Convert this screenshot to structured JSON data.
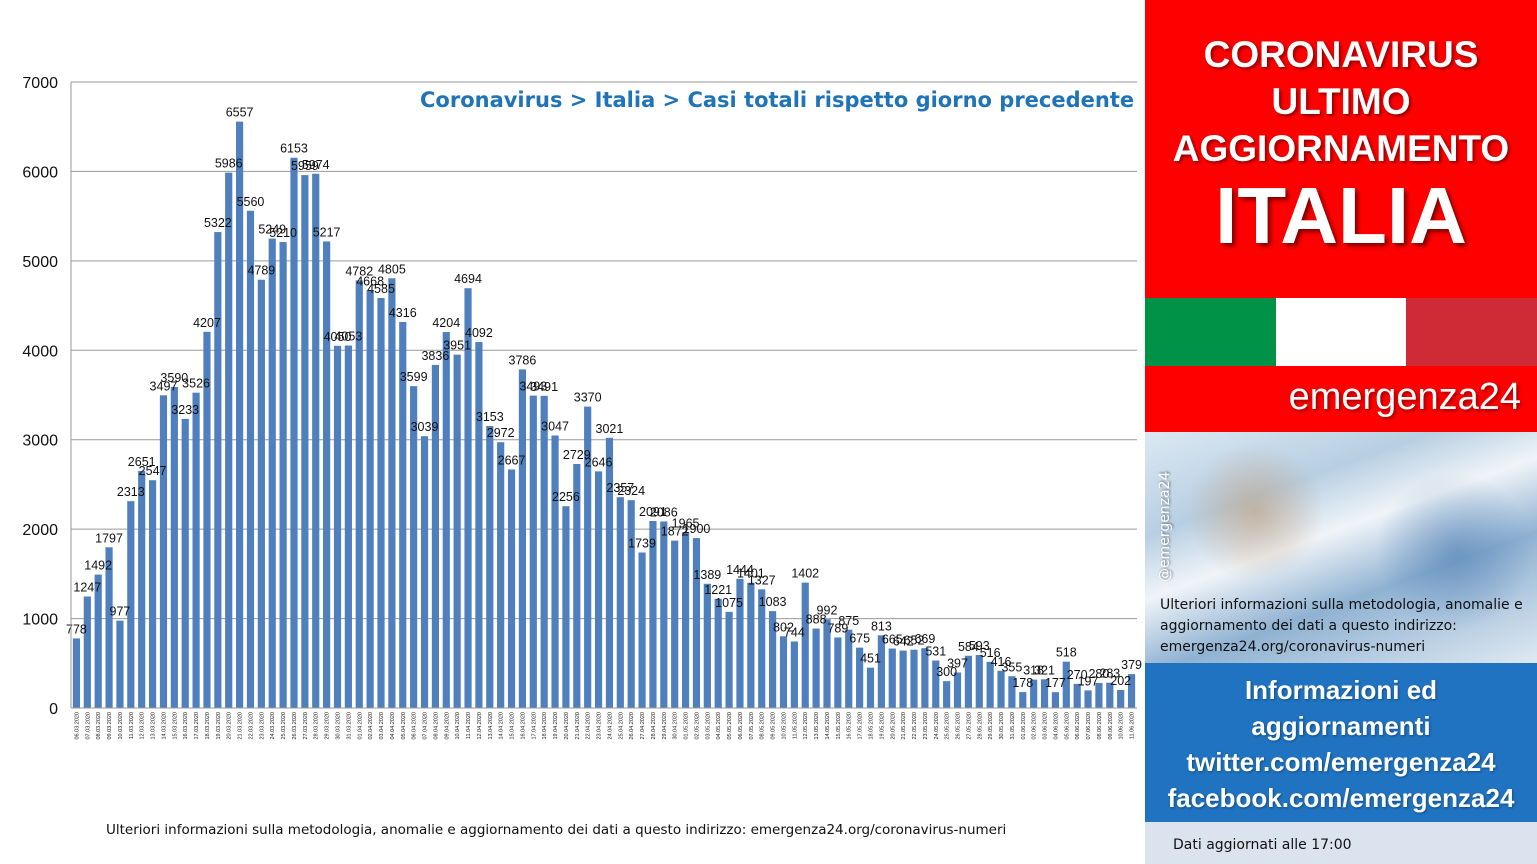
{
  "chart_data": {
    "type": "bar",
    "title": "Coronavirus > Italia > Casi totali rispetto giorno precedente",
    "ylim": [
      0,
      7000
    ],
    "yticks": [
      0,
      1000,
      2000,
      3000,
      4000,
      5000,
      6000,
      7000
    ],
    "grid": true,
    "color": "#4f7fbd",
    "categories": [
      "06.03.2020",
      "07.03.2020",
      "08.03.2020",
      "09.03.2020",
      "10.03.2020",
      "11.03.2020",
      "12.03.2020",
      "13.03.2020",
      "14.03.2020",
      "15.03.2020",
      "16.03.2020",
      "17.03.2020",
      "18.03.2020",
      "19.03.2020",
      "20.03.2020",
      "21.03.2020",
      "22.03.2020",
      "23.03.2020",
      "24.03.2020",
      "25.03.2020",
      "26.03.2020",
      "27.03.2020",
      "28.03.2020",
      "29.03.2020",
      "30.03.2020",
      "31.03.2020",
      "01.04.2020",
      "02.04.2020",
      "03.04.2020",
      "04.04.2020",
      "05.04.2020",
      "06.04.2020",
      "07.04.2020",
      "08.04.2020",
      "09.04.2020",
      "10.04.2020",
      "11.04.2020",
      "12.04.2020",
      "13.04.2020",
      "14.04.2020",
      "15.04.2020",
      "16.04.2020",
      "17.04.2020",
      "18.04.2020",
      "19.04.2020",
      "20.04.2020",
      "21.04.2020",
      "22.04.2020",
      "23.04.2020",
      "24.04.2020",
      "25.04.2020",
      "26.04.2020",
      "27.04.2020",
      "28.04.2020",
      "29.04.2020",
      "30.04.2020",
      "01.05.2020",
      "02.05.2020",
      "03.05.2020",
      "04.05.2020",
      "05.05.2020",
      "06.05.2020",
      "07.05.2020",
      "08.05.2020",
      "09.05.2020",
      "10.05.2020",
      "11.05.2020",
      "12.05.2020",
      "13.05.2020",
      "14.05.2020",
      "15.05.2020",
      "16.05.2020",
      "17.05.2020",
      "18.05.2020",
      "19.05.2020",
      "20.05.2020",
      "21.05.2020",
      "22.05.2020",
      "23.05.2020",
      "24.05.2020",
      "25.05.2020",
      "26.05.2020",
      "27.05.2020",
      "28.05.2020",
      "29.05.2020",
      "30.05.2020",
      "31.05.2020",
      "01.06.2020",
      "02.06.2020",
      "03.06.2020",
      "04.06.2020",
      "05.06.2020",
      "06.06.2020",
      "07.06.2020",
      "08.06.2020",
      "09.06.2020",
      "10.06.2020",
      "11.06.2020"
    ],
    "values": [
      778,
      1247,
      1492,
      1797,
      977,
      2313,
      2651,
      2547,
      3497,
      3590,
      3233,
      3526,
      4207,
      5322,
      5986,
      6557,
      5560,
      4789,
      5249,
      5210,
      6153,
      5959,
      5974,
      5217,
      4050,
      4053,
      4782,
      4668,
      4585,
      4805,
      4316,
      3599,
      3039,
      3836,
      4204,
      3951,
      4694,
      4092,
      3153,
      2972,
      2667,
      3786,
      3493,
      3491,
      3047,
      2256,
      2729,
      3370,
      2646,
      3021,
      2357,
      2324,
      1739,
      2091,
      2086,
      1872,
      1965,
      1900,
      1389,
      1221,
      1075,
      1444,
      1401,
      1327,
      1083,
      802,
      744,
      1402,
      888,
      992,
      789,
      875,
      675,
      451,
      813,
      665,
      642,
      652,
      669,
      531,
      300,
      397,
      584,
      593,
      516,
      416,
      355,
      178,
      318,
      321,
      177,
      518,
      270,
      197,
      280,
      283,
      202,
      379
    ]
  },
  "bottom_note": "Ulteriori informazioni sulla metodologia, anomalie e aggiornamento dei dati a questo indirizzo: emergenza24.org/coronavirus-numeri",
  "side": {
    "header_lines": [
      "CORONAVIRUS",
      "ULTIMO",
      "AGGIORNAMENTO"
    ],
    "header_big": "ITALIA",
    "flag_colors": [
      "#009246",
      "#ffffff",
      "#ce2b37"
    ],
    "brand": "emergenza24",
    "handle": "@emergenza24",
    "info_text": "Ulteriori informazioni sulla metodologia, anomalie e aggiornamento dei dati a questo indirizzo: emergenza24.org/coronavirus-numeri",
    "blue_lines": [
      "Informazioni ed",
      "aggiornamenti",
      "twitter.com/emergenza24",
      "facebook.com/emergenza24"
    ],
    "updated": "Dati aggiornati alle 17:00"
  }
}
